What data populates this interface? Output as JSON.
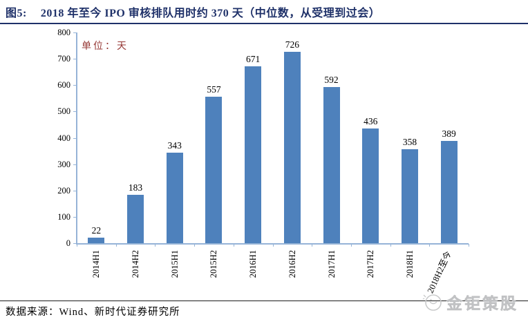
{
  "figure": {
    "label": "图5:",
    "title": "2018 年至今 IPO 审核排队用时约 370 天（中位数，从受理到过会）"
  },
  "chart_data": {
    "type": "bar",
    "unit_label": "单位：天",
    "categories": [
      "2014H1",
      "2014H2",
      "2015H1",
      "2015H2",
      "2016H1",
      "2016H2",
      "2017H1",
      "2017H2",
      "2018H1",
      "2018H2至今"
    ],
    "values": [
      22,
      183,
      343,
      557,
      671,
      726,
      592,
      436,
      358,
      389
    ],
    "ylim": [
      0,
      800
    ],
    "yticks": [
      0,
      100,
      200,
      300,
      400,
      500,
      600,
      700,
      800
    ],
    "xlabel": "",
    "ylabel": "",
    "legend_position": "none",
    "grid": false,
    "data_labels": true,
    "bar_color": "#4E81BC",
    "axis_color": "#95B3D7"
  },
  "footer": {
    "source": "数据来源：Wind、新时代证券研究所"
  },
  "watermark": {
    "brand": "金钜策股"
  },
  "colors": {
    "title_navy": "#1F3169",
    "unit_red": "#953734",
    "bar_blue": "#4E81BC",
    "axis_blue": "#95B3D7",
    "watermark_gray": "#C9CACB"
  }
}
